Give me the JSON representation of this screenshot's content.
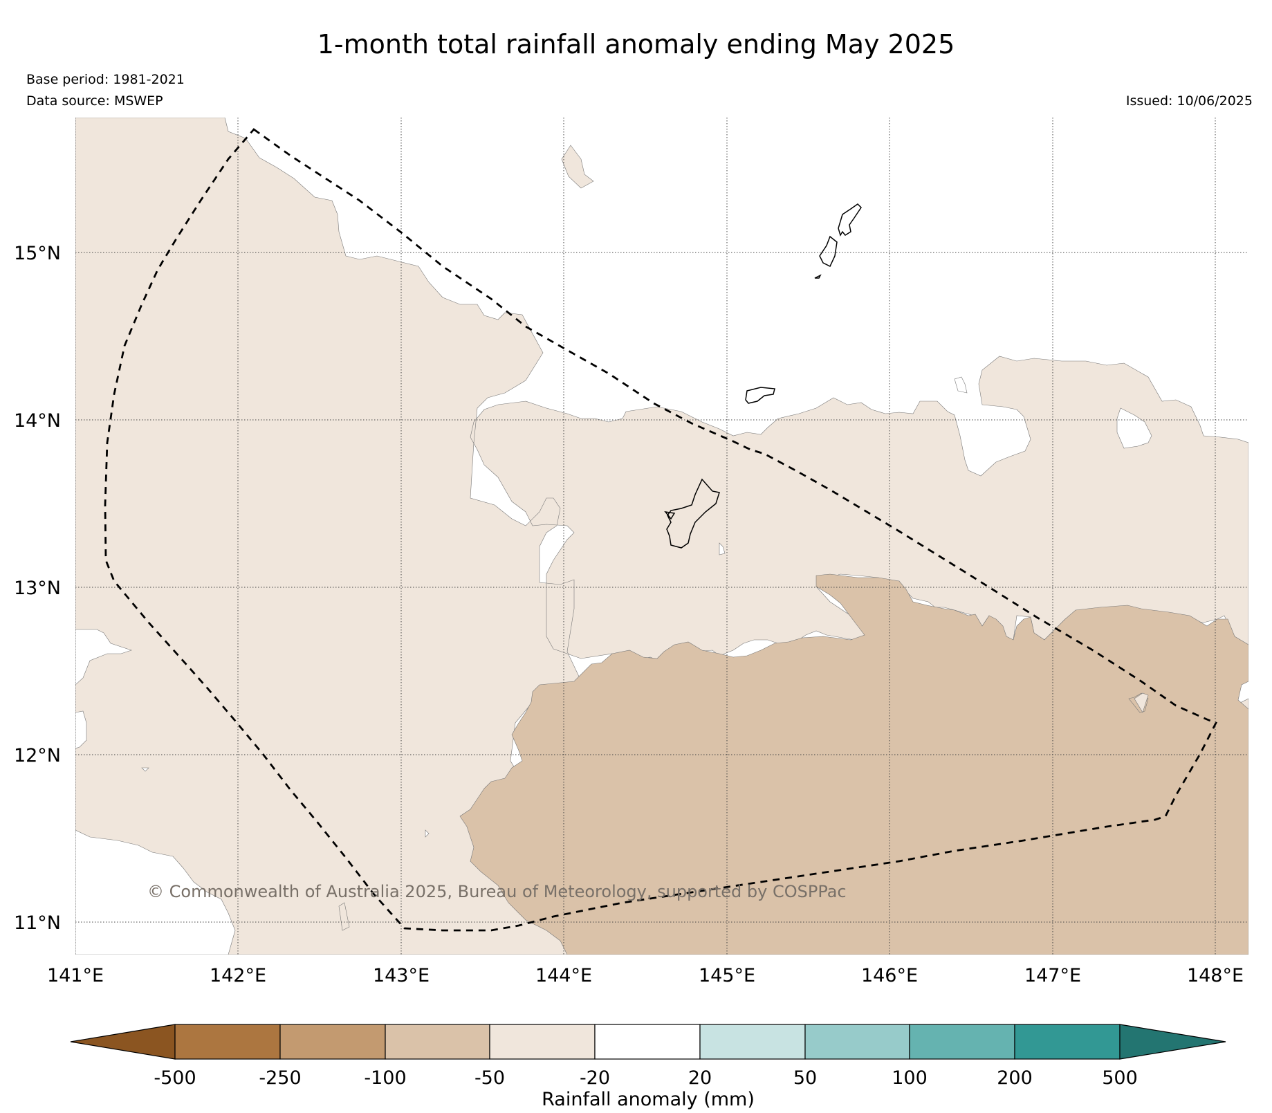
{
  "header": {
    "title": "1-month total rainfall anomaly ending May 2025",
    "base_period": "Base period: 1981-2021",
    "data_source": "Data source: MSWEP",
    "issued": "Issued: 10/06/2025"
  },
  "map": {
    "lon_ticks": [
      "141°E",
      "142°E",
      "143°E",
      "144°E",
      "145°E",
      "146°E",
      "147°E",
      "148°E"
    ],
    "lat_ticks": [
      "15°N",
      "14°N",
      "13°N",
      "12°N",
      "11°N"
    ],
    "copyright": "© Commonwealth of Australia 2025, Bureau of Meteorology, supported by COSPPac",
    "fill_colors": {
      "m50_m20": "#f0e6dc",
      "m100_m50": "#dac2a9"
    }
  },
  "colorbar": {
    "tick_labels": [
      "-500",
      "-250",
      "-100",
      "-50",
      "-20",
      "20",
      "50",
      "100",
      "200",
      "500"
    ],
    "label": "Rainfall anomaly (mm)",
    "colors": [
      "#8b5521",
      "#ac7640",
      "#c39a70",
      "#dac2a9",
      "#f0e6dc",
      "#ffffff",
      "#c8e3e2",
      "#97cbca",
      "#65b3b0",
      "#329894",
      "#237571"
    ]
  }
}
